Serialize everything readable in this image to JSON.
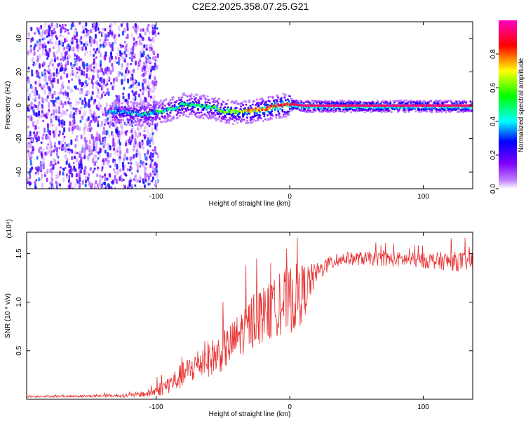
{
  "figure_title": "C2E2.2025.358.07.25.G21",
  "chart_data": [
    {
      "type": "heatmap",
      "title": "C2E2.2025.358.07.25.G21",
      "xlabel": "Height of straight line (km)",
      "ylabel": "Frequency (Hz)",
      "xlim": [
        -197,
        137
      ],
      "ylim": [
        -50,
        50
      ],
      "xticks": [
        -100,
        0,
        100
      ],
      "xtick_labels": [
        "-100",
        "0",
        "100"
      ],
      "yticks": [
        -40,
        -20,
        0,
        20,
        40
      ],
      "ytick_labels": [
        "-40",
        "-20",
        "0",
        "20",
        "40"
      ],
      "colorbar": {
        "label": "Normalized spectral amplitude",
        "range": [
          0,
          1
        ],
        "ticks": [
          0.0,
          0.2,
          0.4,
          0.6,
          0.8
        ],
        "tick_labels": [
          "0.0",
          "0.2",
          "0.4",
          "0.6",
          "0.8"
        ],
        "colormap": [
          "#ffffff",
          "#8000ff",
          "#0000ff",
          "#00ffff",
          "#00ff00",
          "#ffff00",
          "#ff0000",
          "#ff00ff"
        ]
      },
      "ridge": {
        "description": "dominant frequency track vs height",
        "x": [
          -130,
          -110,
          -100,
          -90,
          -80,
          -70,
          -60,
          -50,
          -40,
          -30,
          -20,
          -10,
          0,
          10,
          50,
          100,
          137
        ],
        "frequency": [
          -4,
          -5,
          -4,
          -2,
          1,
          0,
          -1,
          -3,
          -4,
          -3,
          -2,
          0,
          1,
          0,
          0,
          0,
          0
        ],
        "amplitude": [
          0.35,
          0.4,
          0.45,
          0.45,
          0.5,
          0.5,
          0.5,
          0.55,
          0.6,
          0.7,
          0.8,
          0.85,
          0.9,
          0.95,
          0.95,
          0.95,
          0.95
        ]
      },
      "noise_region_x": [
        -197,
        -107
      ]
    },
    {
      "type": "line",
      "xlabel": "Height of straight line (km)",
      "ylabel": "SNR (10 * v/v)",
      "y_multiplier": "(x10⁴)",
      "xlim": [
        -197,
        137
      ],
      "ylim": [
        0,
        1.72
      ],
      "xticks": [
        -100,
        0,
        100
      ],
      "xtick_labels": [
        "-100",
        "0",
        "100"
      ],
      "yticks": [
        0.5,
        1.0,
        1.5
      ],
      "ytick_labels": [
        "0.5",
        "1.0",
        "1.5"
      ],
      "series": [
        {
          "name": "SNR",
          "color": "#e83030",
          "x": [
            -197,
            -160,
            -120,
            -105,
            -95,
            -85,
            -75,
            -65,
            -55,
            -45,
            -35,
            -25,
            -15,
            -10,
            -5,
            0,
            5,
            10,
            15,
            20,
            30,
            40,
            60,
            80,
            100,
            120,
            137
          ],
          "values": [
            0.03,
            0.03,
            0.04,
            0.06,
            0.12,
            0.2,
            0.3,
            0.4,
            0.45,
            0.55,
            0.7,
            0.85,
            0.9,
            0.95,
            1.0,
            1.02,
            1.05,
            1.1,
            1.2,
            1.3,
            1.4,
            1.45,
            1.45,
            1.44,
            1.43,
            1.42,
            1.42
          ],
          "noise_amplitude": [
            0.01,
            0.01,
            0.02,
            0.04,
            0.08,
            0.12,
            0.15,
            0.18,
            0.2,
            0.22,
            0.25,
            0.3,
            0.3,
            0.3,
            0.35,
            0.35,
            0.35,
            0.3,
            0.2,
            0.1,
            0.08,
            0.07,
            0.07,
            0.08,
            0.08,
            0.1,
            0.1
          ]
        }
      ]
    }
  ]
}
